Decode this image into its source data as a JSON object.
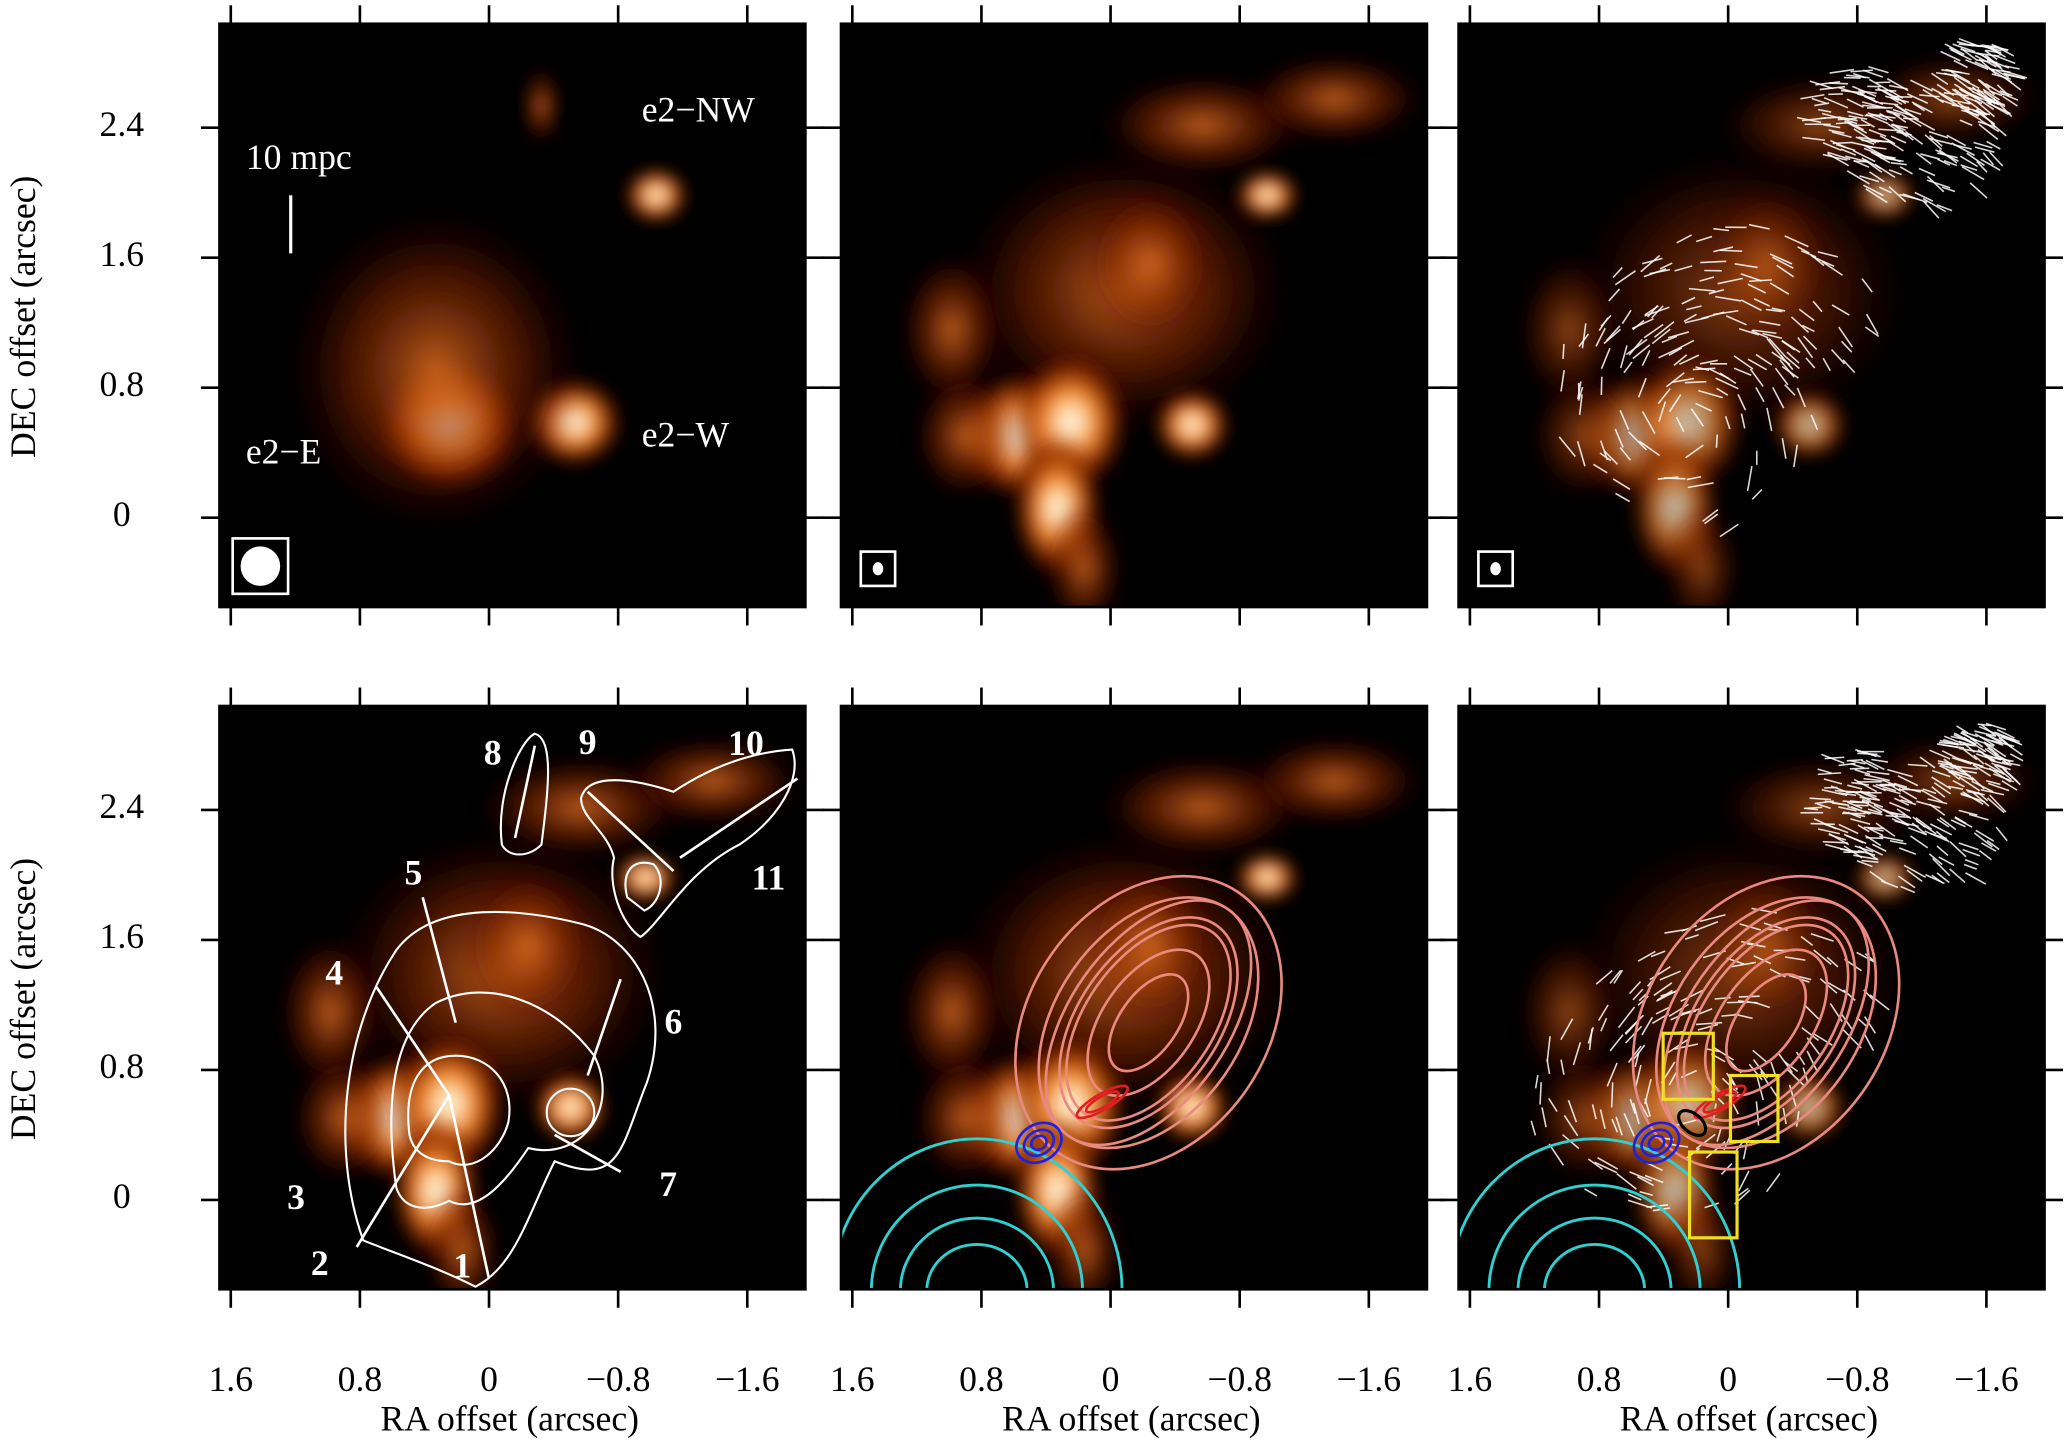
{
  "chart_data": {
    "type": "image-grid",
    "xlabel": "RA offset (arcsec)",
    "ylabel": "DEC offset (arcsec)",
    "xlim": [
      1.67,
      -1.96
    ],
    "ylim": [
      -0.55,
      3.04
    ],
    "xticks": [
      1.6,
      0.8,
      0,
      {
        "value": -0.8,
        "label": "−0.8"
      },
      {
        "value": -1.6,
        "label": "−1.6"
      }
    ],
    "yticks": [
      0,
      0.8,
      1.6,
      2.4
    ],
    "annotations": [
      "10 mpc",
      "e2−NW",
      "e2−E",
      "e2−W",
      "1",
      "2",
      "3",
      "4",
      "5",
      "6",
      "7",
      "8",
      "9",
      "10",
      "11"
    ]
  }
}
